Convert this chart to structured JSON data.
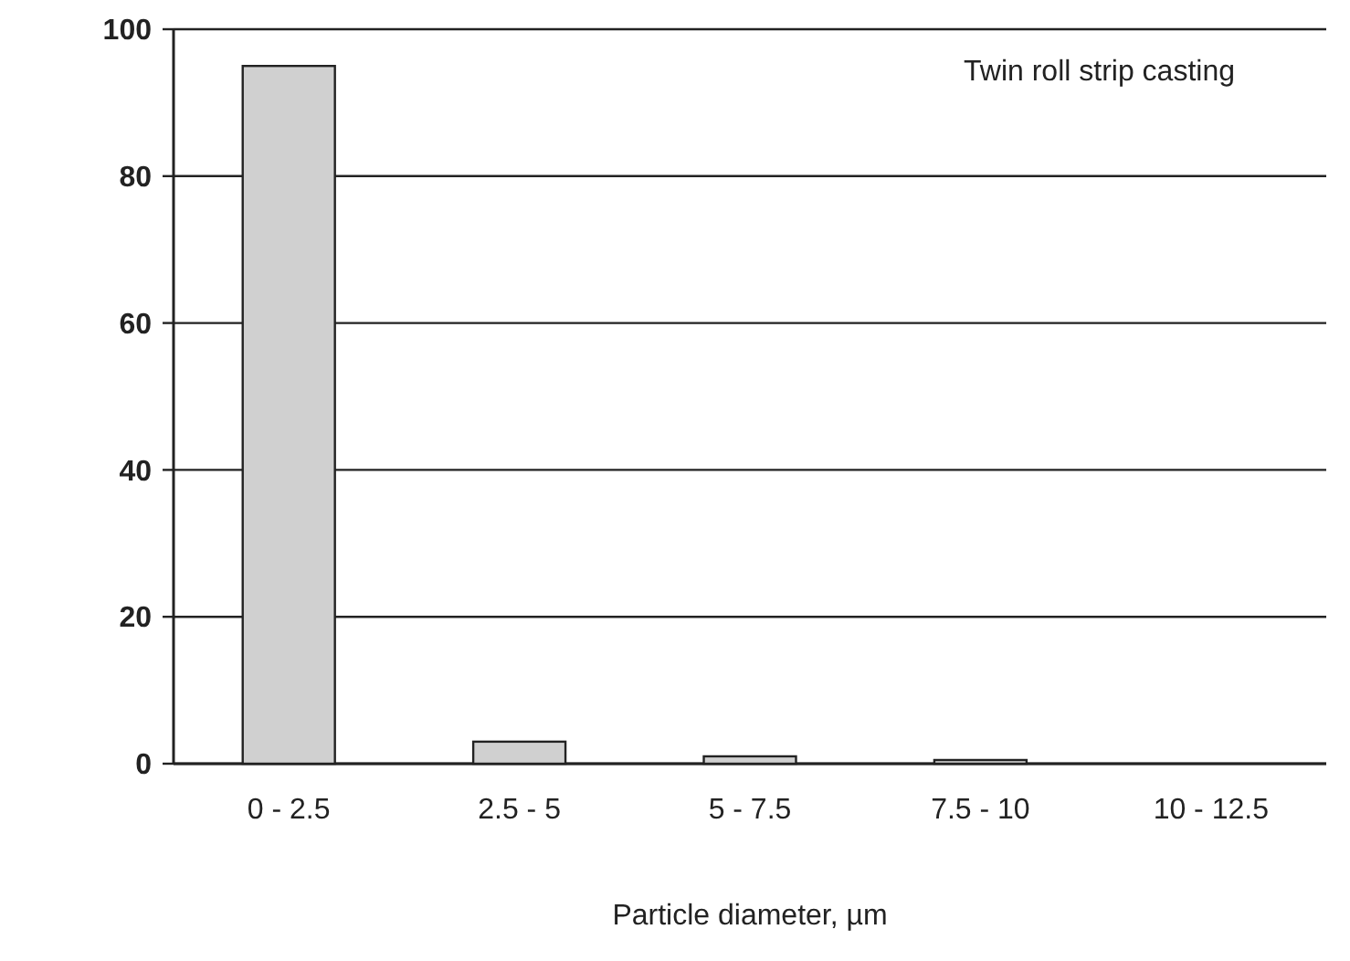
{
  "chart_data": {
    "type": "bar",
    "xlabel": "Particle diameter, µm",
    "categories": [
      "0 - 2.5",
      "2.5 - 5",
      "5 - 7.5",
      "7.5 - 10",
      "10 - 12.5"
    ],
    "values": [
      95,
      3,
      1,
      0.5,
      0
    ],
    "color": "#d0d0d0",
    "ylim": [
      0,
      100
    ],
    "yticks": [
      0,
      20,
      40,
      60,
      80,
      100
    ],
    "grid": "y",
    "annotations": [
      "Twin roll strip casting"
    ]
  }
}
